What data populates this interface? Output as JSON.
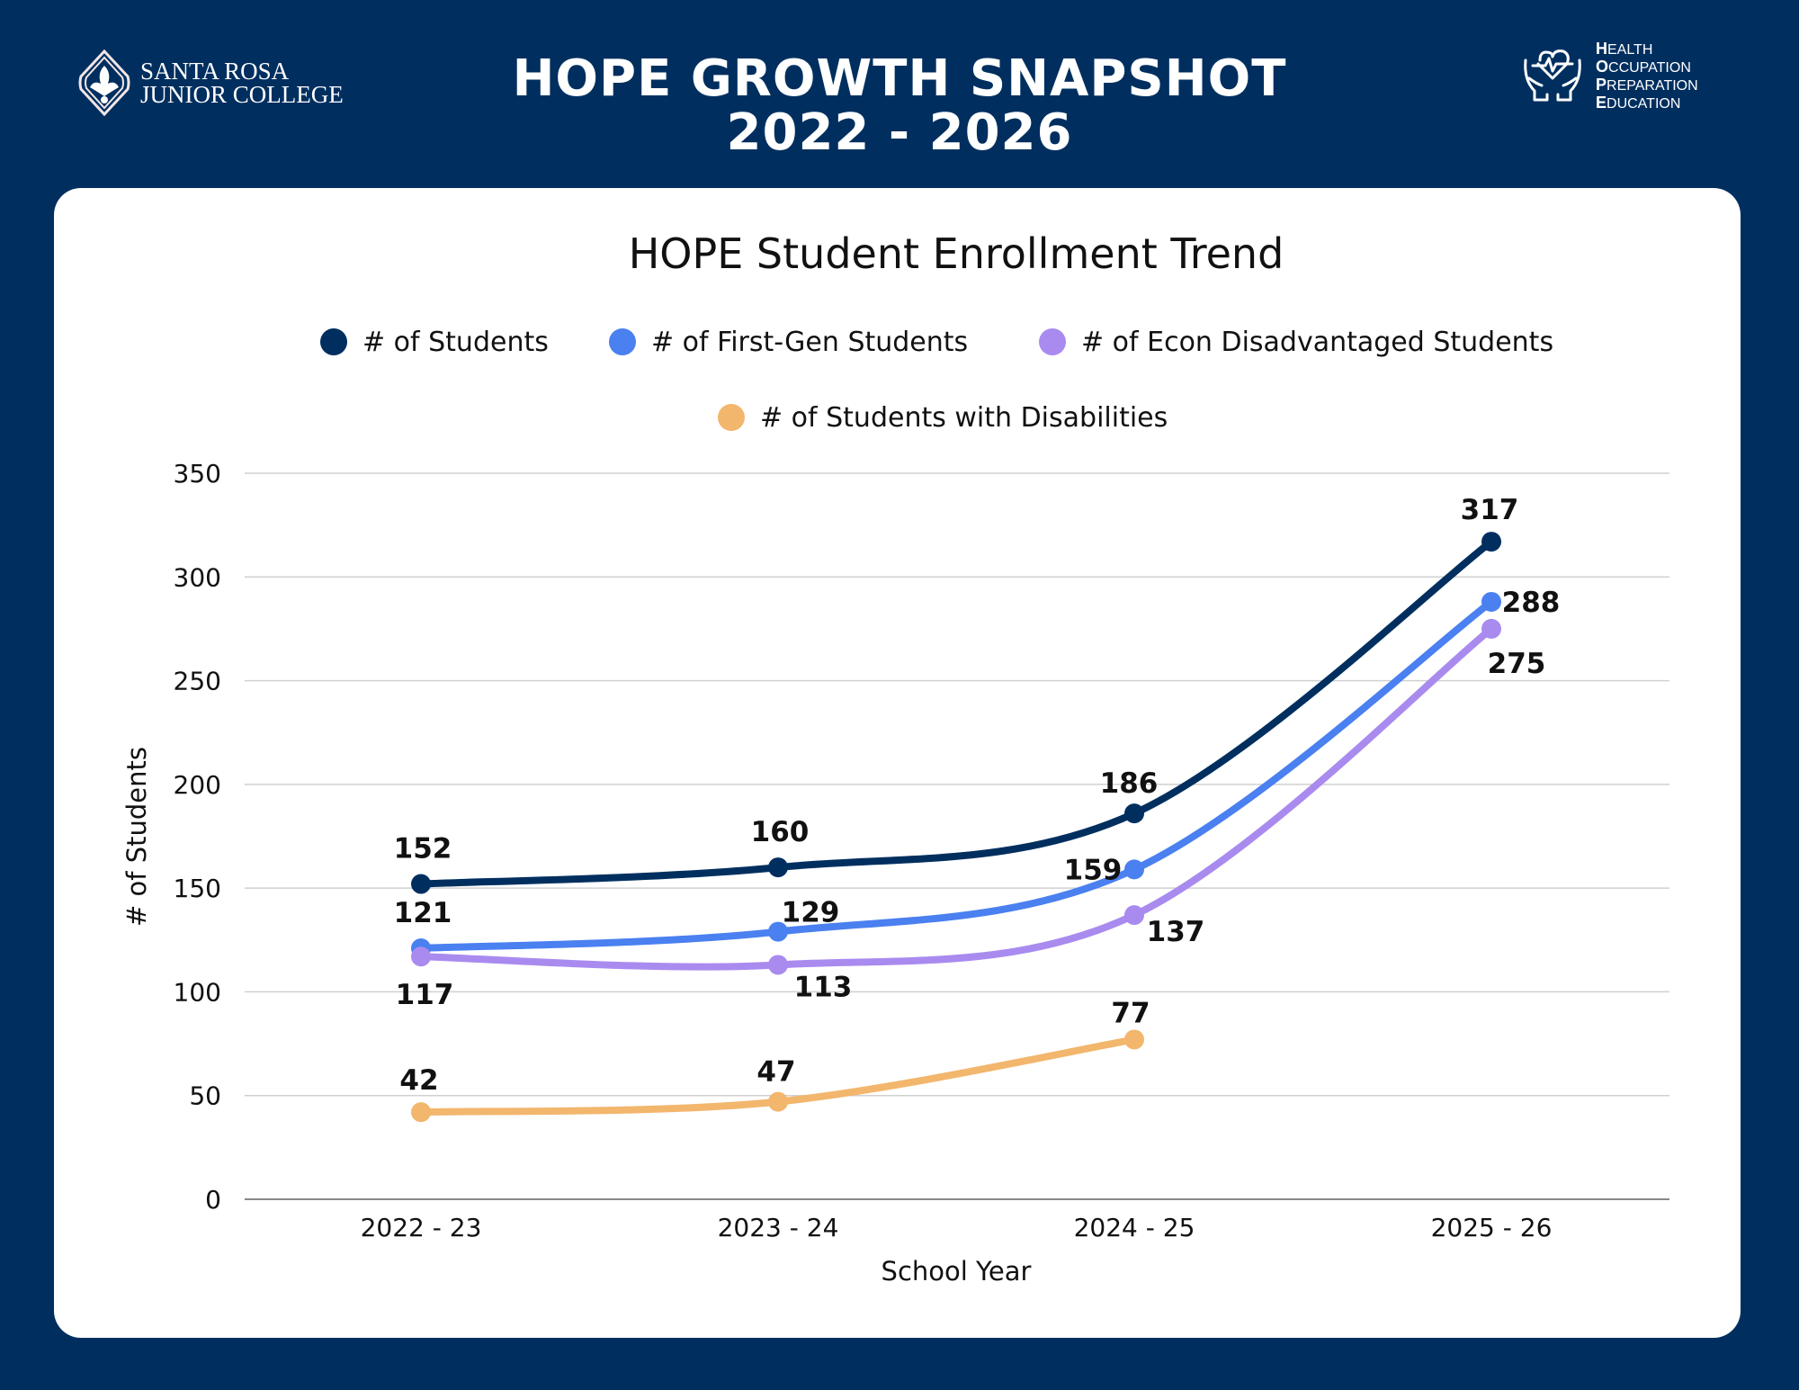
{
  "header": {
    "title_line1": "HOPE GROWTH SNAPSHOT",
    "title_line2": "2022 - 2026",
    "left_logo": {
      "line1": "SANTA ROSA",
      "line2": "JUNIOR COLLEGE"
    },
    "right_logo": {
      "lines": [
        {
          "initial": "H",
          "rest": "EALTH"
        },
        {
          "initial": "O",
          "rest": "CCUPATION"
        },
        {
          "initial": "P",
          "rest": "REPARATION"
        },
        {
          "initial": "E",
          "rest": "DUCATION"
        }
      ]
    }
  },
  "colors": {
    "background": "#002f5f",
    "card": "#ffffff"
  },
  "chart_data": {
    "type": "line",
    "title": "HOPE Student Enrollment Trend",
    "xlabel": "School Year",
    "ylabel": "# of Students",
    "categories": [
      "2022 - 23",
      "2023 - 24",
      "2024 - 25",
      "2025 - 26"
    ],
    "ylim": [
      0,
      350
    ],
    "yticks": [
      0,
      50,
      100,
      150,
      200,
      250,
      300,
      350
    ],
    "grid": true,
    "legend_position": "top",
    "smooth": true,
    "series": [
      {
        "name": "# of Students",
        "color": "#002f5f",
        "values": [
          152,
          160,
          186,
          317
        ]
      },
      {
        "name": "# of First-Gen Students",
        "color": "#4a80f0",
        "values": [
          121,
          129,
          159,
          288
        ]
      },
      {
        "name": "# of Econ Disadvantaged Students",
        "color": "#a98bef",
        "values": [
          117,
          113,
          137,
          275
        ]
      },
      {
        "name": "# of Students with Disabilities",
        "color": "#f2b66d",
        "values": [
          42,
          47,
          77,
          null
        ]
      }
    ]
  }
}
